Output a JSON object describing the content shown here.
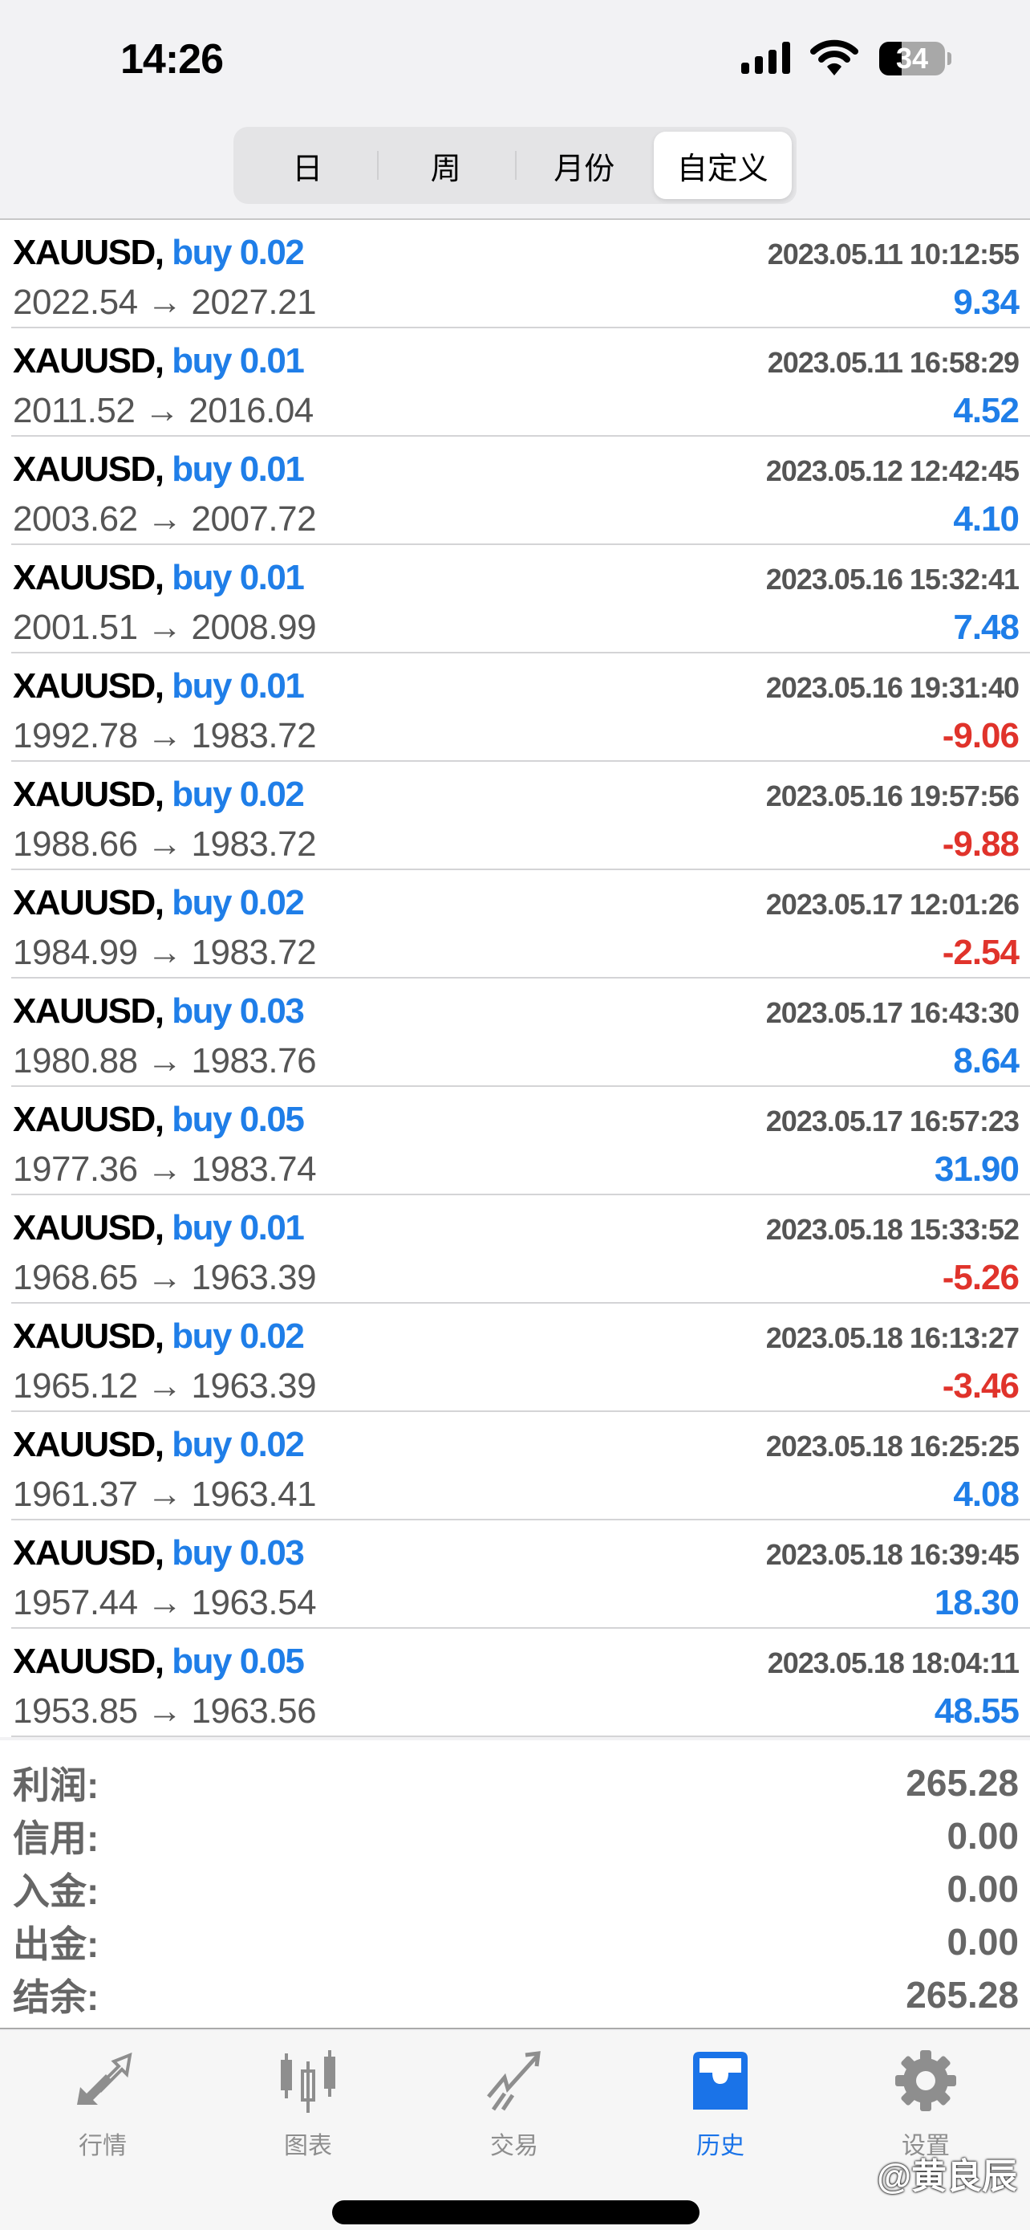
{
  "status": {
    "time": "14:26",
    "battery": "34",
    "battery_level": 0.34
  },
  "segments": [
    {
      "label": "日"
    },
    {
      "label": "周"
    },
    {
      "label": "月份"
    },
    {
      "label": "自定义",
      "active": true
    }
  ],
  "colors": {
    "profit": "#1f7ee8",
    "loss": "#e0332b",
    "accent": "#1a73e8"
  },
  "trades": [
    {
      "symbol": "XAUUSD,",
      "action": "buy 0.02",
      "time": "2023.05.11 10:12:55",
      "prices": "2022.54 → 2027.21",
      "profit": "9.34"
    },
    {
      "symbol": "XAUUSD,",
      "action": "buy 0.01",
      "time": "2023.05.11 16:58:29",
      "prices": "2011.52 → 2016.04",
      "profit": "4.52"
    },
    {
      "symbol": "XAUUSD,",
      "action": "buy 0.01",
      "time": "2023.05.12 12:42:45",
      "prices": "2003.62 → 2007.72",
      "profit": "4.10"
    },
    {
      "symbol": "XAUUSD,",
      "action": "buy 0.01",
      "time": "2023.05.16 15:32:41",
      "prices": "2001.51 → 2008.99",
      "profit": "7.48"
    },
    {
      "symbol": "XAUUSD,",
      "action": "buy 0.01",
      "time": "2023.05.16 19:31:40",
      "prices": "1992.78 → 1983.72",
      "profit": "-9.06"
    },
    {
      "symbol": "XAUUSD,",
      "action": "buy 0.02",
      "time": "2023.05.16 19:57:56",
      "prices": "1988.66 → 1983.72",
      "profit": "-9.88"
    },
    {
      "symbol": "XAUUSD,",
      "action": "buy 0.02",
      "time": "2023.05.17 12:01:26",
      "prices": "1984.99 → 1983.72",
      "profit": "-2.54"
    },
    {
      "symbol": "XAUUSD,",
      "action": "buy 0.03",
      "time": "2023.05.17 16:43:30",
      "prices": "1980.88 → 1983.76",
      "profit": "8.64"
    },
    {
      "symbol": "XAUUSD,",
      "action": "buy 0.05",
      "time": "2023.05.17 16:57:23",
      "prices": "1977.36 → 1983.74",
      "profit": "31.90"
    },
    {
      "symbol": "XAUUSD,",
      "action": "buy 0.01",
      "time": "2023.05.18 15:33:52",
      "prices": "1968.65 → 1963.39",
      "profit": "-5.26"
    },
    {
      "symbol": "XAUUSD,",
      "action": "buy 0.02",
      "time": "2023.05.18 16:13:27",
      "prices": "1965.12 → 1963.39",
      "profit": "-3.46"
    },
    {
      "symbol": "XAUUSD,",
      "action": "buy 0.02",
      "time": "2023.05.18 16:25:25",
      "prices": "1961.37 → 1963.41",
      "profit": "4.08"
    },
    {
      "symbol": "XAUUSD,",
      "action": "buy 0.03",
      "time": "2023.05.18 16:39:45",
      "prices": "1957.44 → 1963.54",
      "profit": "18.30"
    },
    {
      "symbol": "XAUUSD,",
      "action": "buy 0.05",
      "time": "2023.05.18 18:04:11",
      "prices": "1953.85 → 1963.56",
      "profit": "48.55"
    }
  ],
  "summary": [
    {
      "label": "利润:",
      "value": "265.28"
    },
    {
      "label": "信用:",
      "value": "0.00"
    },
    {
      "label": "入金:",
      "value": "0.00"
    },
    {
      "label": "出金:",
      "value": "0.00"
    },
    {
      "label": "结余:",
      "value": "265.28"
    }
  ],
  "tabs": [
    {
      "label": "行情",
      "icon": "quotes-arrows-icon"
    },
    {
      "label": "图表",
      "icon": "candlestick-chart-icon"
    },
    {
      "label": "交易",
      "icon": "trade-trend-icon"
    },
    {
      "label": "历史",
      "icon": "history-tray-icon",
      "active": true
    },
    {
      "label": "设置",
      "icon": "gear-icon"
    }
  ],
  "watermark": "@黄良辰"
}
